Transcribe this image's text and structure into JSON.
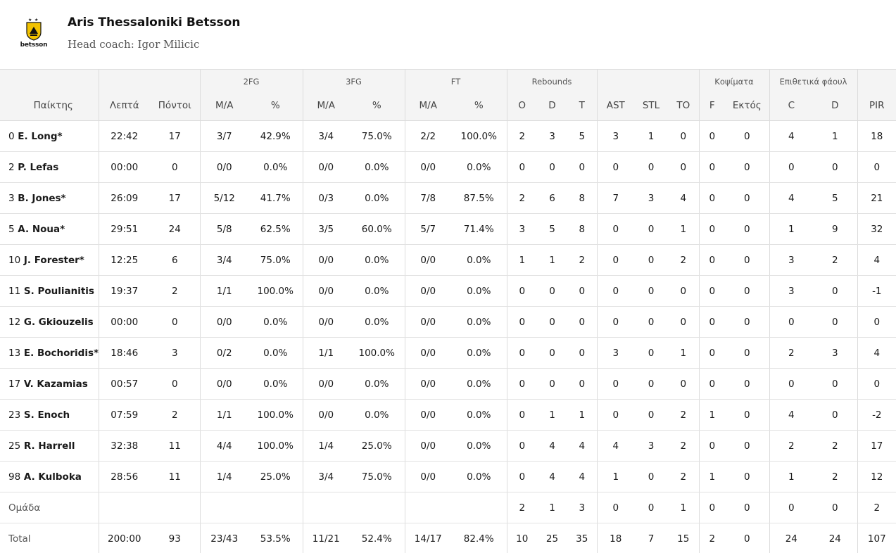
{
  "team": {
    "name": "Aris Thessaloniki Betsson",
    "coach": "Head coach: Igor Milicic",
    "logo_text": "betsson",
    "logo_color": "#f2c200"
  },
  "columns": {
    "groups": {
      "fg2": "2FG",
      "fg3": "3FG",
      "ft": "FT",
      "rebounds": "Rebounds",
      "blocks": "Κοψίματα",
      "fouls": "Επιθετικά φάουλ"
    },
    "headers": {
      "player": "Παίκτης",
      "minutes": "Λεπτά",
      "points": "Πόντοι",
      "fg2_ma": "M/A",
      "fg2_pct": "%",
      "fg3_ma": "M/A",
      "fg3_pct": "%",
      "ft_ma": "M/A",
      "ft_pct": "%",
      "reb_o": "O",
      "reb_d": "D",
      "reb_t": "T",
      "ast": "AST",
      "stl": "STL",
      "to": "TO",
      "blk_f": "F",
      "blk_a": "Εκτός",
      "foul_c": "C",
      "foul_d": "D",
      "pir": "PIR"
    }
  },
  "rows": [
    {
      "num": "0",
      "name": "E. Long*",
      "min": "22:42",
      "pts": "17",
      "fg2": "3/7",
      "fg2p": "42.9%",
      "fg3": "3/4",
      "fg3p": "75.0%",
      "ft": "2/2",
      "ftp": "100.0%",
      "o": "2",
      "d": "3",
      "t": "5",
      "ast": "3",
      "stl": "1",
      "to": "0",
      "bf": "0",
      "ba": "0",
      "fc": "4",
      "fd": "1",
      "pir": "18"
    },
    {
      "num": "2",
      "name": "P. Lefas",
      "min": "00:00",
      "pts": "0",
      "fg2": "0/0",
      "fg2p": "0.0%",
      "fg3": "0/0",
      "fg3p": "0.0%",
      "ft": "0/0",
      "ftp": "0.0%",
      "o": "0",
      "d": "0",
      "t": "0",
      "ast": "0",
      "stl": "0",
      "to": "0",
      "bf": "0",
      "ba": "0",
      "fc": "0",
      "fd": "0",
      "pir": "0"
    },
    {
      "num": "3",
      "name": "B. Jones*",
      "min": "26:09",
      "pts": "17",
      "fg2": "5/12",
      "fg2p": "41.7%",
      "fg3": "0/3",
      "fg3p": "0.0%",
      "ft": "7/8",
      "ftp": "87.5%",
      "o": "2",
      "d": "6",
      "t": "8",
      "ast": "7",
      "stl": "3",
      "to": "4",
      "bf": "0",
      "ba": "0",
      "fc": "4",
      "fd": "5",
      "pir": "21"
    },
    {
      "num": "5",
      "name": "A. Noua*",
      "min": "29:51",
      "pts": "24",
      "fg2": "5/8",
      "fg2p": "62.5%",
      "fg3": "3/5",
      "fg3p": "60.0%",
      "ft": "5/7",
      "ftp": "71.4%",
      "o": "3",
      "d": "5",
      "t": "8",
      "ast": "0",
      "stl": "0",
      "to": "1",
      "bf": "0",
      "ba": "0",
      "fc": "1",
      "fd": "9",
      "pir": "32"
    },
    {
      "num": "10",
      "name": "J. Forester*",
      "min": "12:25",
      "pts": "6",
      "fg2": "3/4",
      "fg2p": "75.0%",
      "fg3": "0/0",
      "fg3p": "0.0%",
      "ft": "0/0",
      "ftp": "0.0%",
      "o": "1",
      "d": "1",
      "t": "2",
      "ast": "0",
      "stl": "0",
      "to": "2",
      "bf": "0",
      "ba": "0",
      "fc": "3",
      "fd": "2",
      "pir": "4"
    },
    {
      "num": "11",
      "name": "S. Poulianitis",
      "min": "19:37",
      "pts": "2",
      "fg2": "1/1",
      "fg2p": "100.0%",
      "fg3": "0/0",
      "fg3p": "0.0%",
      "ft": "0/0",
      "ftp": "0.0%",
      "o": "0",
      "d": "0",
      "t": "0",
      "ast": "0",
      "stl": "0",
      "to": "0",
      "bf": "0",
      "ba": "0",
      "fc": "3",
      "fd": "0",
      "pir": "-1"
    },
    {
      "num": "12",
      "name": "G. Gkiouzelis",
      "min": "00:00",
      "pts": "0",
      "fg2": "0/0",
      "fg2p": "0.0%",
      "fg3": "0/0",
      "fg3p": "0.0%",
      "ft": "0/0",
      "ftp": "0.0%",
      "o": "0",
      "d": "0",
      "t": "0",
      "ast": "0",
      "stl": "0",
      "to": "0",
      "bf": "0",
      "ba": "0",
      "fc": "0",
      "fd": "0",
      "pir": "0"
    },
    {
      "num": "13",
      "name": "E. Bochoridis*",
      "min": "18:46",
      "pts": "3",
      "fg2": "0/2",
      "fg2p": "0.0%",
      "fg3": "1/1",
      "fg3p": "100.0%",
      "ft": "0/0",
      "ftp": "0.0%",
      "o": "0",
      "d": "0",
      "t": "0",
      "ast": "3",
      "stl": "0",
      "to": "1",
      "bf": "0",
      "ba": "0",
      "fc": "2",
      "fd": "3",
      "pir": "4"
    },
    {
      "num": "17",
      "name": "V. Kazamias",
      "min": "00:57",
      "pts": "0",
      "fg2": "0/0",
      "fg2p": "0.0%",
      "fg3": "0/0",
      "fg3p": "0.0%",
      "ft": "0/0",
      "ftp": "0.0%",
      "o": "0",
      "d": "0",
      "t": "0",
      "ast": "0",
      "stl": "0",
      "to": "0",
      "bf": "0",
      "ba": "0",
      "fc": "0",
      "fd": "0",
      "pir": "0"
    },
    {
      "num": "23",
      "name": "S. Enoch",
      "min": "07:59",
      "pts": "2",
      "fg2": "1/1",
      "fg2p": "100.0%",
      "fg3": "0/0",
      "fg3p": "0.0%",
      "ft": "0/0",
      "ftp": "0.0%",
      "o": "0",
      "d": "1",
      "t": "1",
      "ast": "0",
      "stl": "0",
      "to": "2",
      "bf": "1",
      "ba": "0",
      "fc": "4",
      "fd": "0",
      "pir": "-2"
    },
    {
      "num": "25",
      "name": "R. Harrell",
      "min": "32:38",
      "pts": "11",
      "fg2": "4/4",
      "fg2p": "100.0%",
      "fg3": "1/4",
      "fg3p": "25.0%",
      "ft": "0/0",
      "ftp": "0.0%",
      "o": "0",
      "d": "4",
      "t": "4",
      "ast": "4",
      "stl": "3",
      "to": "2",
      "bf": "0",
      "ba": "0",
      "fc": "2",
      "fd": "2",
      "pir": "17"
    },
    {
      "num": "98",
      "name": "A. Kulboka",
      "min": "28:56",
      "pts": "11",
      "fg2": "1/4",
      "fg2p": "25.0%",
      "fg3": "3/4",
      "fg3p": "75.0%",
      "ft": "0/0",
      "ftp": "0.0%",
      "o": "0",
      "d": "4",
      "t": "4",
      "ast": "1",
      "stl": "0",
      "to": "2",
      "bf": "1",
      "ba": "0",
      "fc": "1",
      "fd": "2",
      "pir": "12"
    }
  ],
  "team_row": {
    "label": "Ομάδα",
    "o": "2",
    "d": "1",
    "t": "3",
    "ast": "0",
    "stl": "0",
    "to": "1",
    "bf": "0",
    "ba": "0",
    "fc": "0",
    "fd": "0",
    "pir": "2"
  },
  "total_row": {
    "label": "Total",
    "min": "200:00",
    "pts": "93",
    "fg2": "23/43",
    "fg2p": "53.5%",
    "fg3": "11/21",
    "fg3p": "52.4%",
    "ft": "14/17",
    "ftp": "82.4%",
    "o": "10",
    "d": "25",
    "t": "35",
    "ast": "18",
    "stl": "7",
    "to": "15",
    "bf": "2",
    "ba": "0",
    "fc": "24",
    "fd": "24",
    "pir": "107"
  }
}
